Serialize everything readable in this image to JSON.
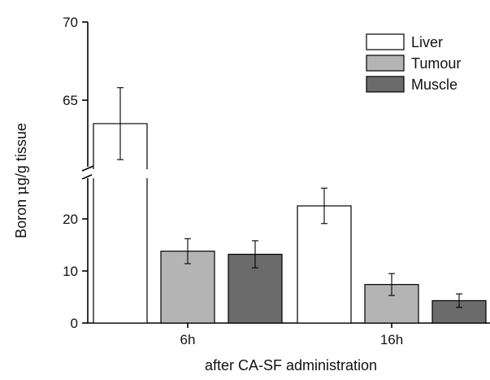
{
  "chart_data": {
    "type": "bar",
    "title": "",
    "xlabel": "after CA-SF administration",
    "ylabel_parts": [
      "Boron ",
      "μ",
      "g/g tissue"
    ],
    "categories": [
      "6h",
      "16h"
    ],
    "series": [
      {
        "name": "Liver",
        "color": "#ffffff",
        "values": [
          63.5,
          22.5
        ],
        "errors": [
          2.3,
          3.4
        ]
      },
      {
        "name": "Tumour",
        "color": "#b4b4b4",
        "values": [
          13.8,
          7.4
        ],
        "errors": [
          2.4,
          2.1
        ]
      },
      {
        "name": "Muscle",
        "color": "#6b6b6b",
        "values": [
          13.2,
          4.3
        ],
        "errors": [
          2.6,
          1.3
        ]
      }
    ],
    "y_axis": {
      "broken": true,
      "lower_segment": {
        "range": [
          0,
          28
        ],
        "ticks": [
          0,
          10,
          20
        ]
      },
      "upper_segment": {
        "range": [
          61,
          70
        ],
        "ticks": [
          65,
          70
        ]
      }
    },
    "ylim": [
      0,
      70
    ],
    "grid": false,
    "legend_position": "top-right"
  }
}
